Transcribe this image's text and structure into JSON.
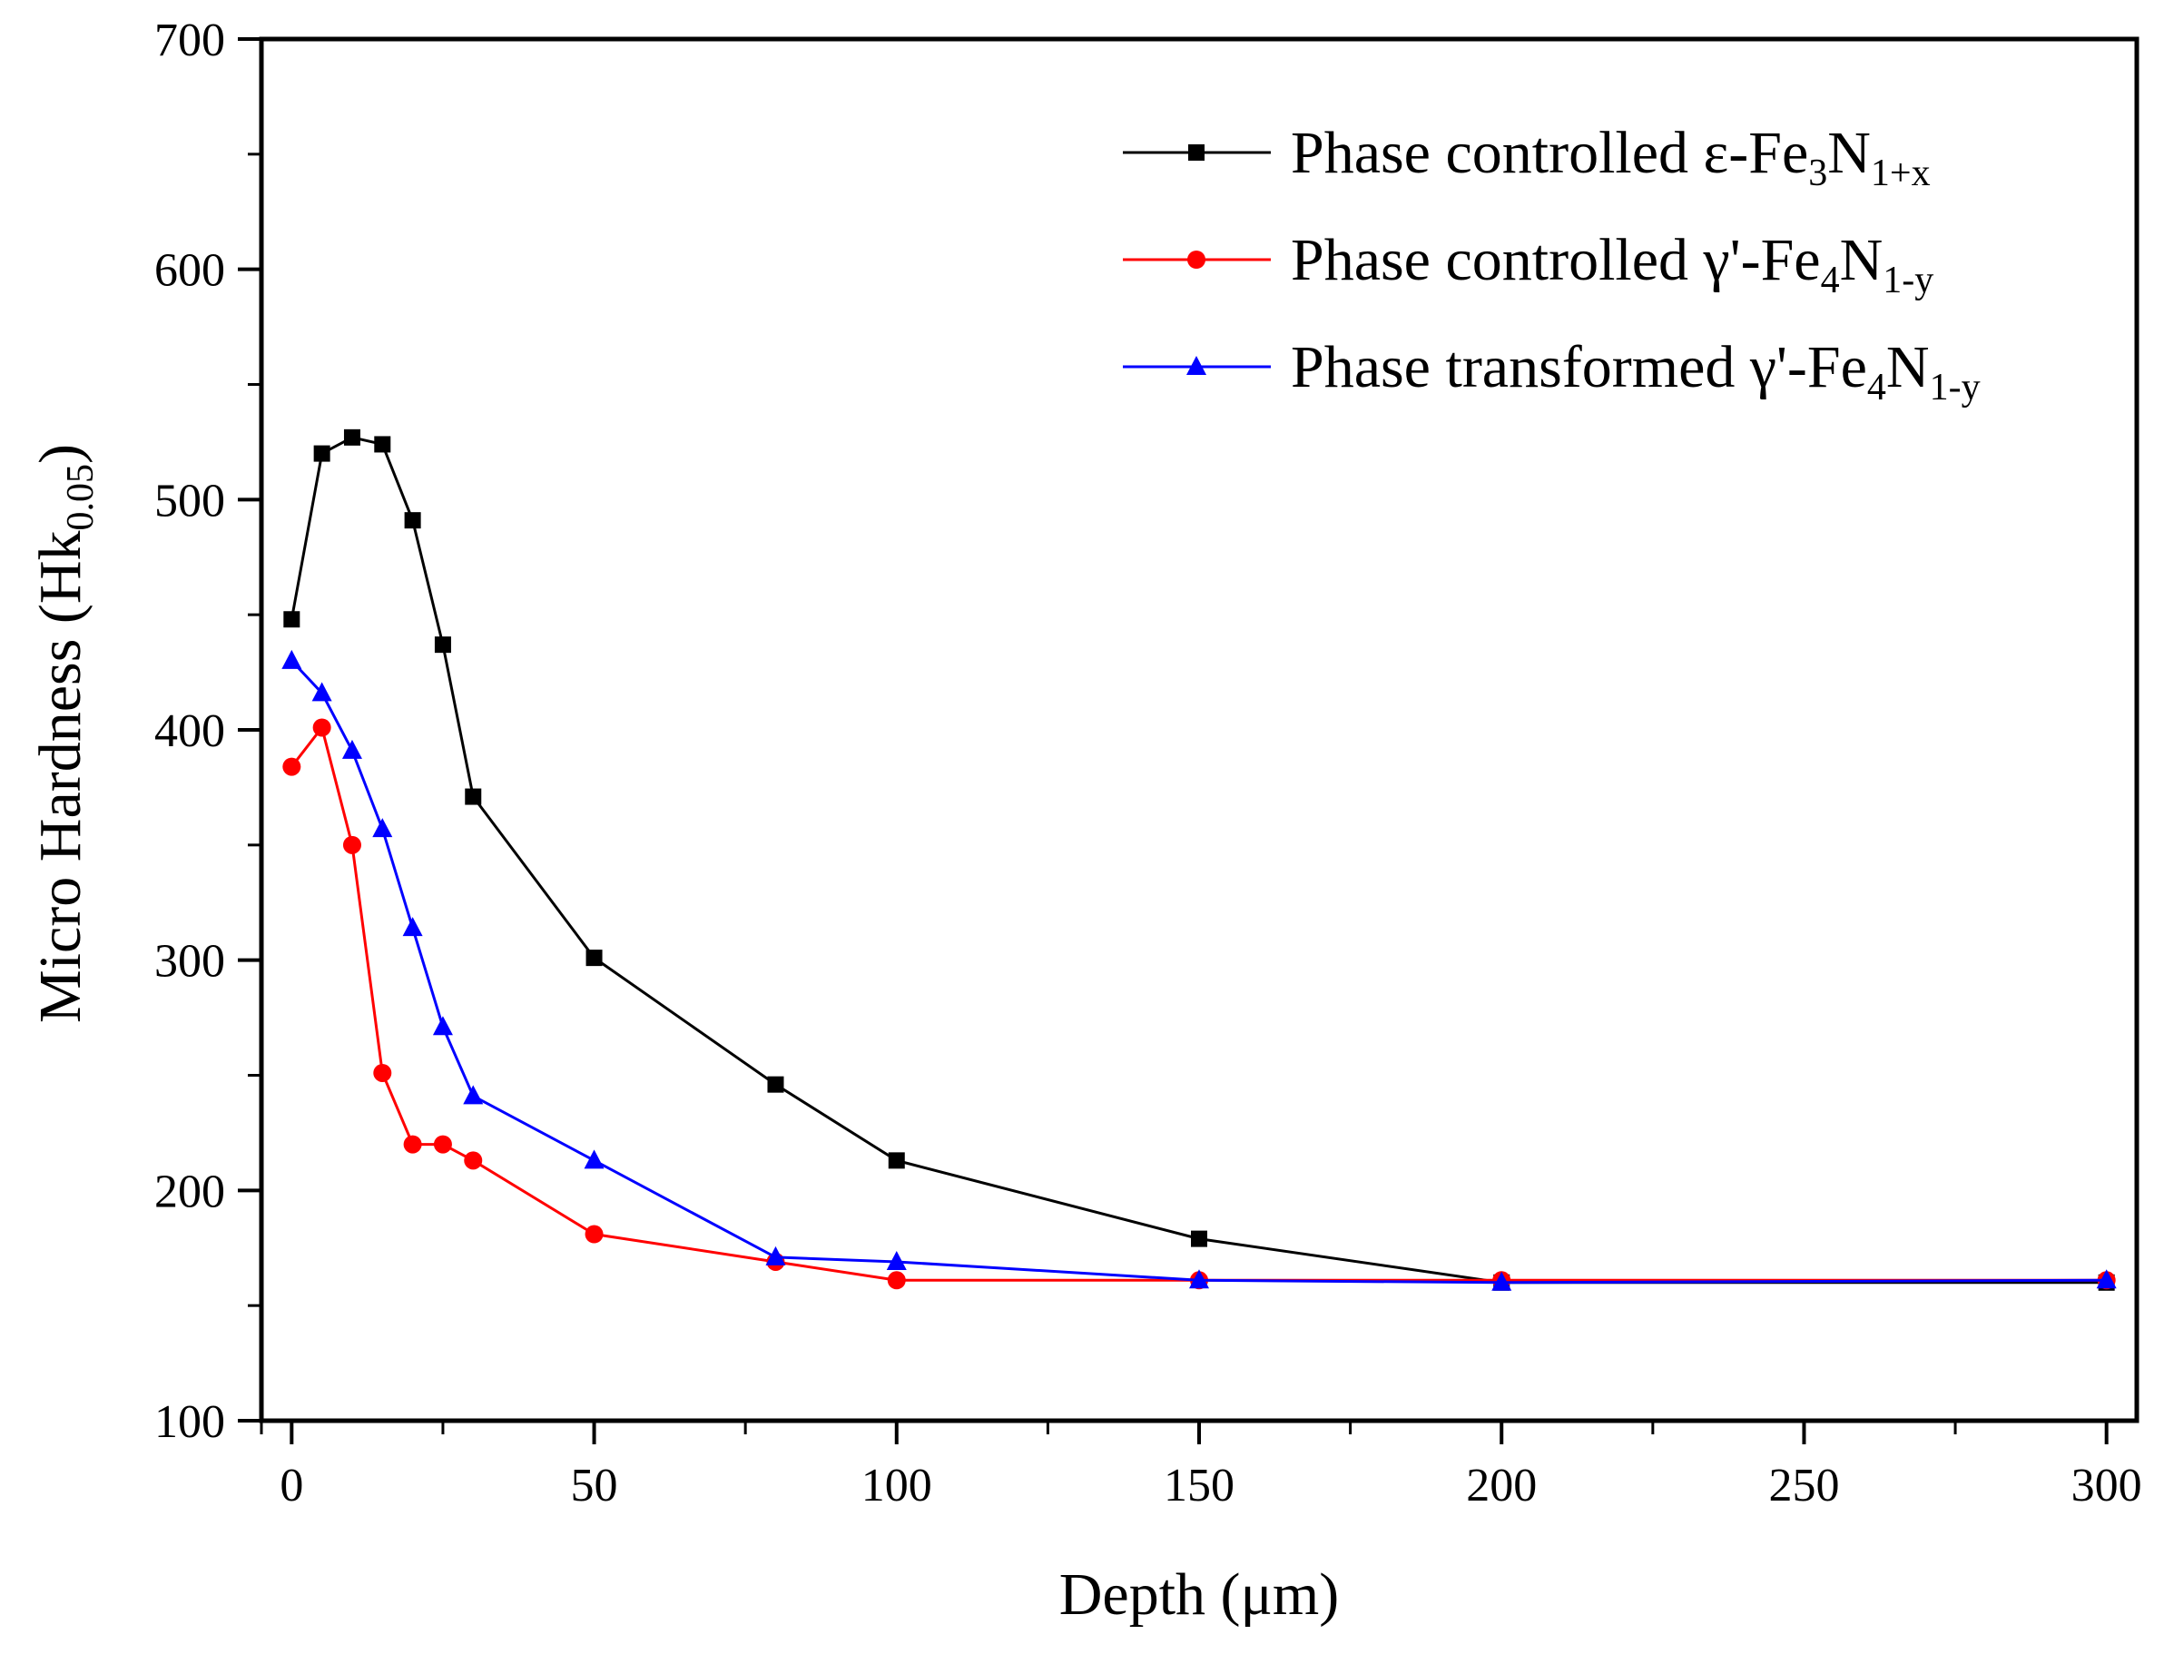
{
  "chart_data": {
    "type": "line",
    "xlabel": "Depth (μm)",
    "ylabel": {
      "main": "Micro Hardness (Hk",
      "sub": "0.05",
      "close": ")"
    },
    "xlim": [
      -5,
      305
    ],
    "ylim": [
      100,
      700
    ],
    "xticks": [
      0,
      50,
      100,
      150,
      200,
      250,
      300
    ],
    "yticks": [
      100,
      200,
      300,
      400,
      500,
      600,
      700
    ],
    "grid": false,
    "legend_position": "top-right",
    "series": [
      {
        "name": {
          "base": "Phase controlled ε-Fe",
          "sub1": "3",
          "mid": "N",
          "sub2": "1+x"
        },
        "color": "#000000",
        "marker": "square",
        "x": [
          0,
          5,
          10,
          15,
          20,
          25,
          30,
          50,
          80,
          100,
          150,
          200,
          300
        ],
        "y": [
          448,
          520,
          527,
          524,
          491,
          437,
          371,
          301,
          246,
          213,
          179,
          160,
          160
        ]
      },
      {
        "name": {
          "base": "Phase controlled γ'-Fe",
          "sub1": "4",
          "mid": "N",
          "sub2": "1-y"
        },
        "color": "#ff0000",
        "marker": "circle",
        "x": [
          0,
          5,
          10,
          15,
          20,
          25,
          30,
          50,
          80,
          100,
          150,
          200,
          300
        ],
        "y": [
          384,
          401,
          350,
          251,
          220,
          220,
          213,
          181,
          169,
          161,
          161,
          161,
          161
        ]
      },
      {
        "name": {
          "base": "Phase transformed γ'-Fe",
          "sub1": "4",
          "mid": "N",
          "sub2": "1-y"
        },
        "color": "#0000ff",
        "marker": "triangle",
        "x": [
          0,
          5,
          10,
          15,
          20,
          25,
          30,
          50,
          80,
          100,
          150,
          200,
          300
        ],
        "y": [
          430,
          416,
          391,
          357,
          314,
          271,
          241,
          213,
          171,
          169,
          161,
          160,
          161
        ]
      }
    ]
  }
}
